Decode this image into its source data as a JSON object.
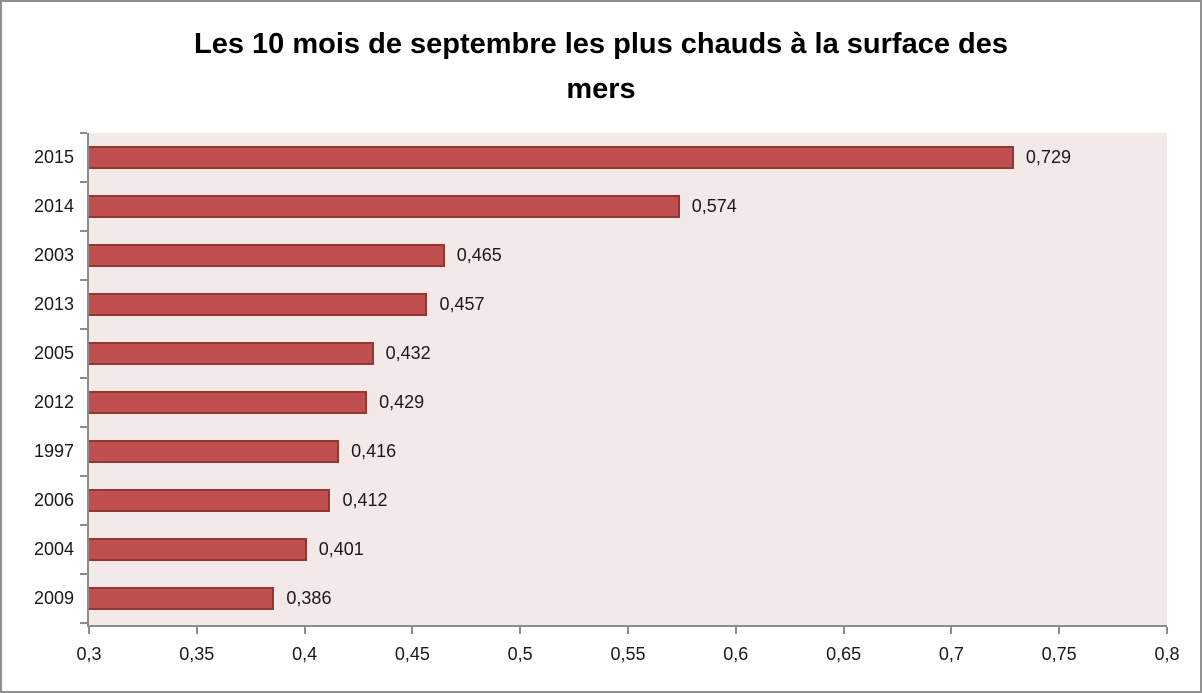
{
  "title": {
    "line1": "Les 10 mois de septembre les plus chauds à la surface des",
    "line2": "mers"
  },
  "chart_data": {
    "type": "bar",
    "orientation": "horizontal",
    "title": "Les 10 mois de septembre les plus chauds à la surface des mers",
    "categories": [
      "2015",
      "2014",
      "2003",
      "2013",
      "2005",
      "2012",
      "1997",
      "2006",
      "2004",
      "2009"
    ],
    "values": [
      0.729,
      0.574,
      0.465,
      0.457,
      0.432,
      0.429,
      0.416,
      0.412,
      0.401,
      0.386
    ],
    "value_labels": [
      "0,729",
      "0,574",
      "0,465",
      "0,457",
      "0,432",
      "0,429",
      "0,416",
      "0,412",
      "0,401",
      "0,386"
    ],
    "xlabel": "",
    "ylabel": "",
    "xlim": [
      0.3,
      0.8
    ],
    "x_ticks": [
      0.3,
      0.35,
      0.4,
      0.45,
      0.5,
      0.55,
      0.6,
      0.65,
      0.7,
      0.75,
      0.8
    ],
    "x_tick_labels": [
      "0,3",
      "0,35",
      "0,4",
      "0,45",
      "0,5",
      "0,55",
      "0,6",
      "0,65",
      "0,7",
      "0,75",
      "0,8"
    ],
    "grid": false,
    "legend": "none",
    "colors": {
      "bar_fill": "#C0504D",
      "bar_border": "#943634",
      "plot_background": "#F2E9E8",
      "axis_line": "#8C8C8C",
      "frame_border": "#909090",
      "text": "#1A1A1A"
    }
  }
}
